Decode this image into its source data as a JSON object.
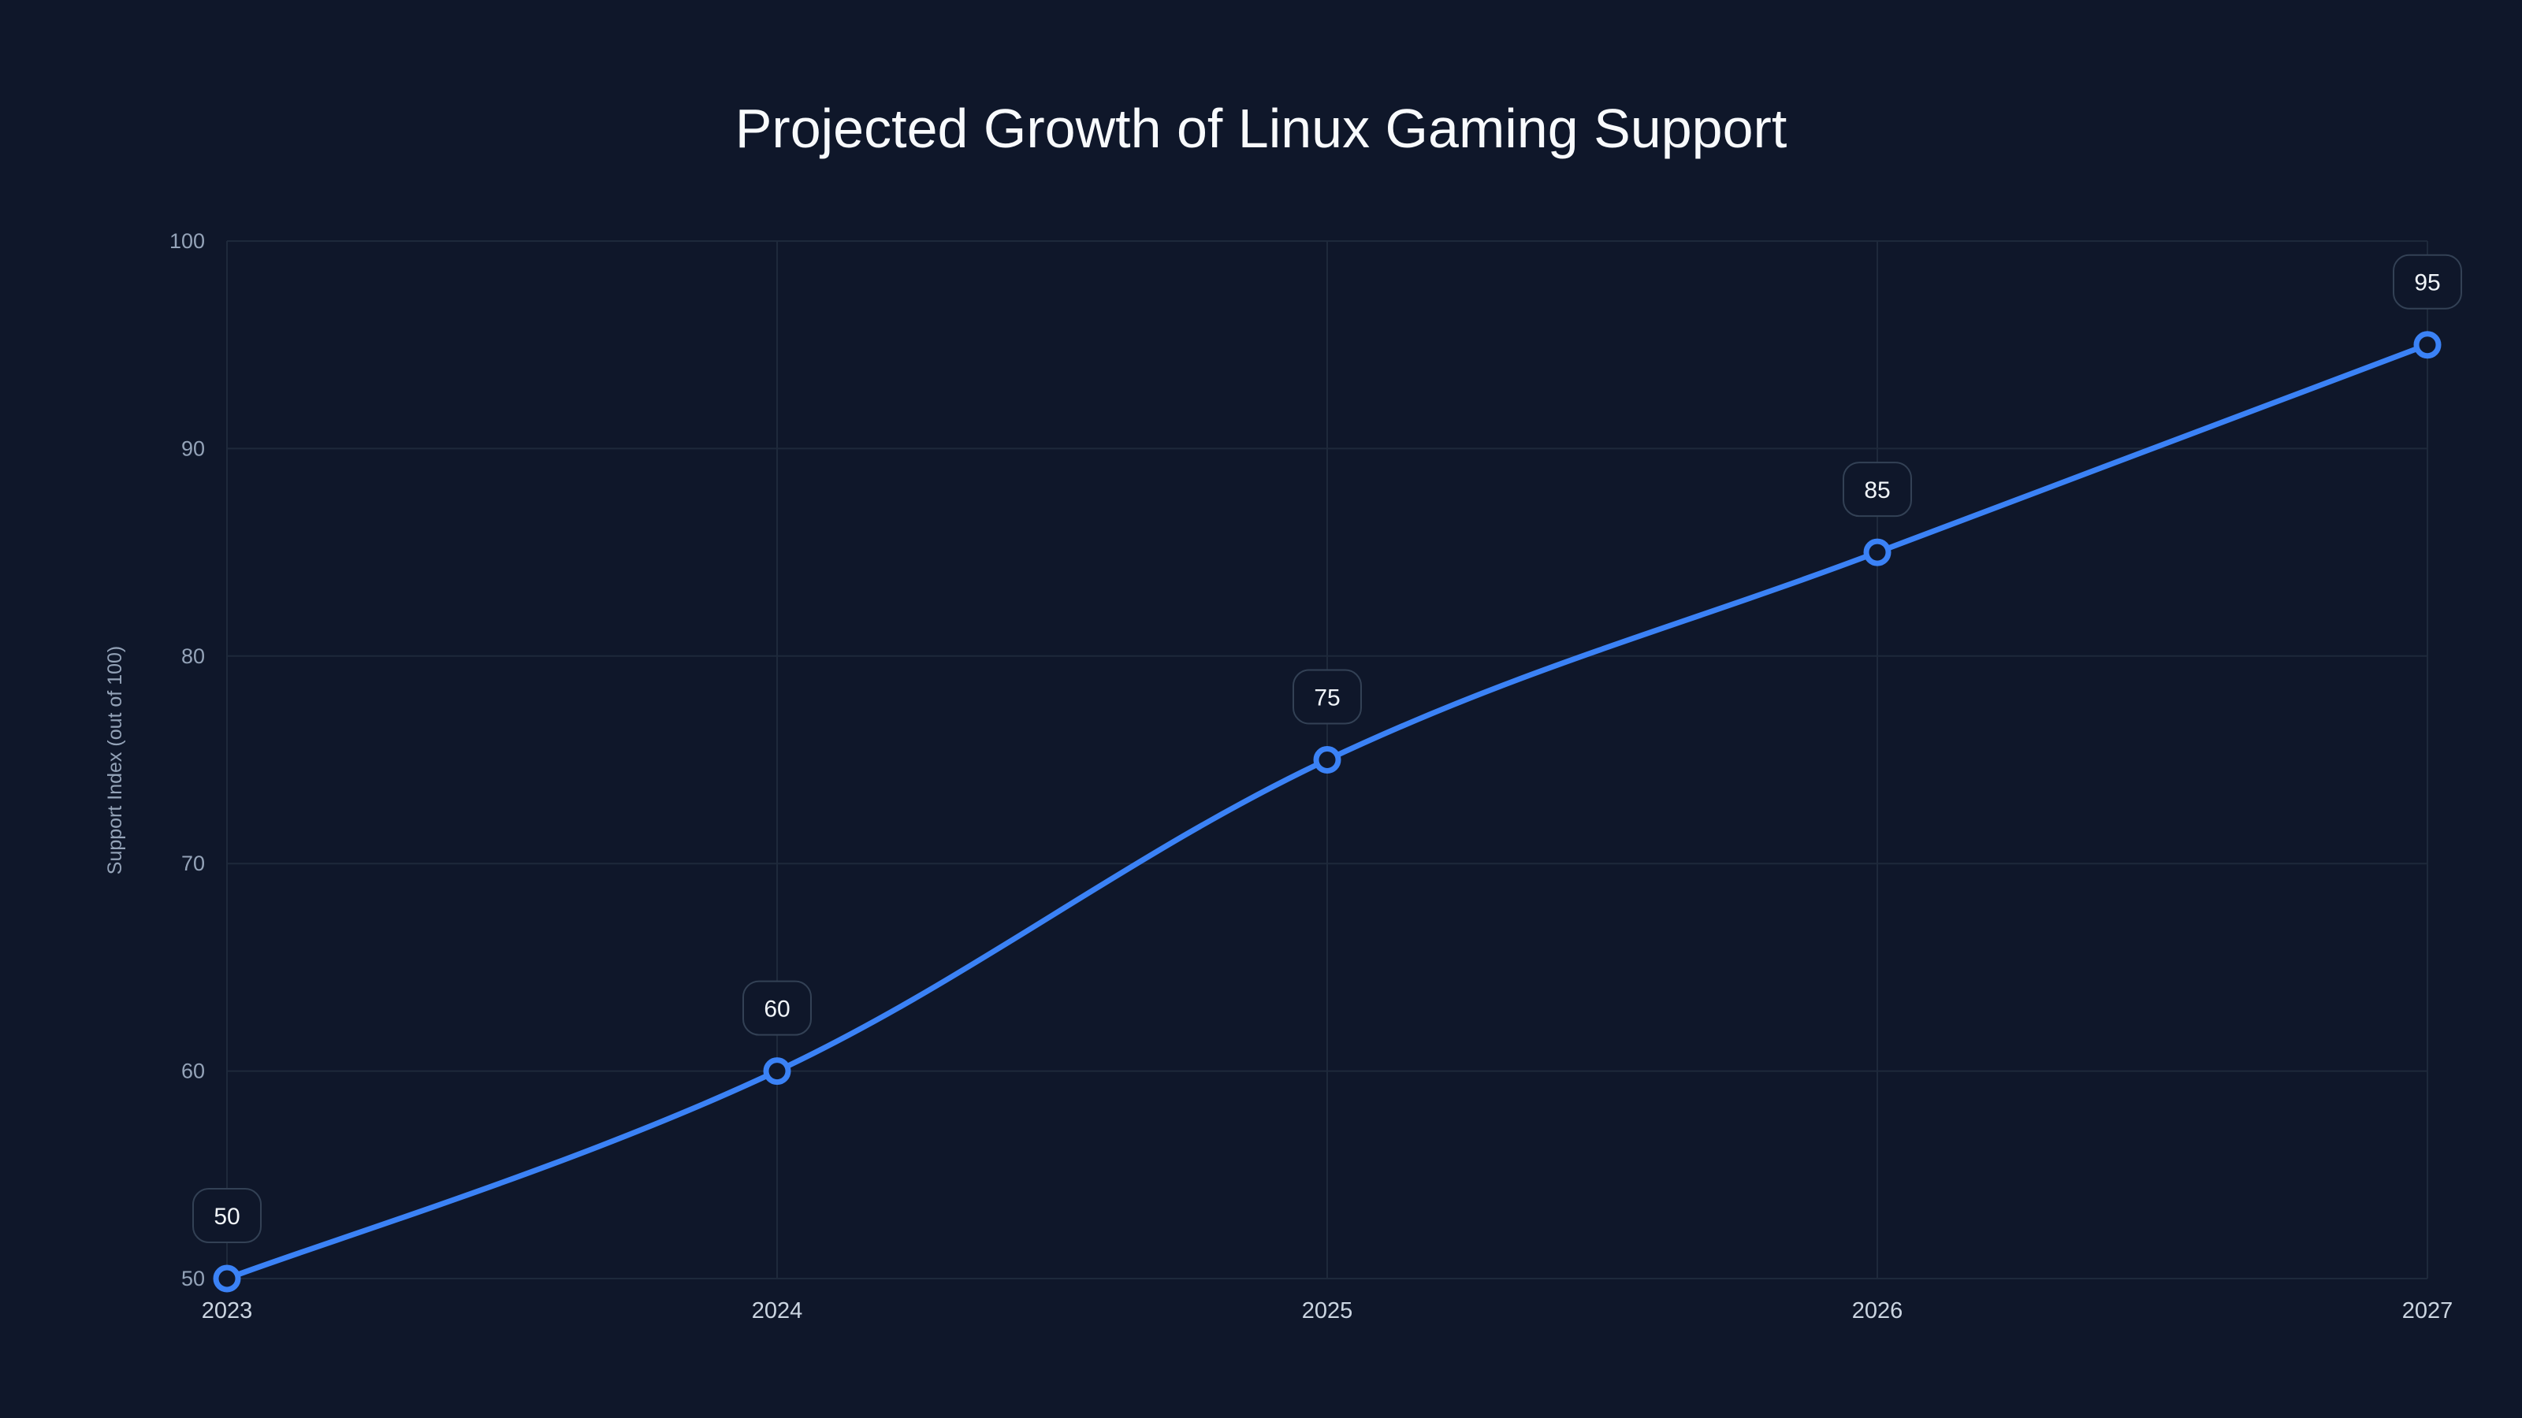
{
  "chart_data": {
    "type": "line",
    "title": "Projected Growth of Linux Gaming Support",
    "xlabel": "",
    "ylabel": "Support Index (out of 100)",
    "categories": [
      "2023",
      "2024",
      "2025",
      "2026",
      "2027"
    ],
    "series": [
      {
        "name": "Support Index",
        "values": [
          50,
          60,
          75,
          85,
          95
        ]
      }
    ],
    "data_labels": [
      "50",
      "60",
      "75",
      "85",
      "95"
    ],
    "ylim": [
      50,
      100
    ],
    "yticks": [
      50,
      60,
      70,
      80,
      90,
      100
    ],
    "grid": true,
    "legend": "none",
    "colors": {
      "background": "#0f172a",
      "line": "#3b82f6",
      "grid": "#1e293b",
      "label_border": "#334155"
    }
  }
}
